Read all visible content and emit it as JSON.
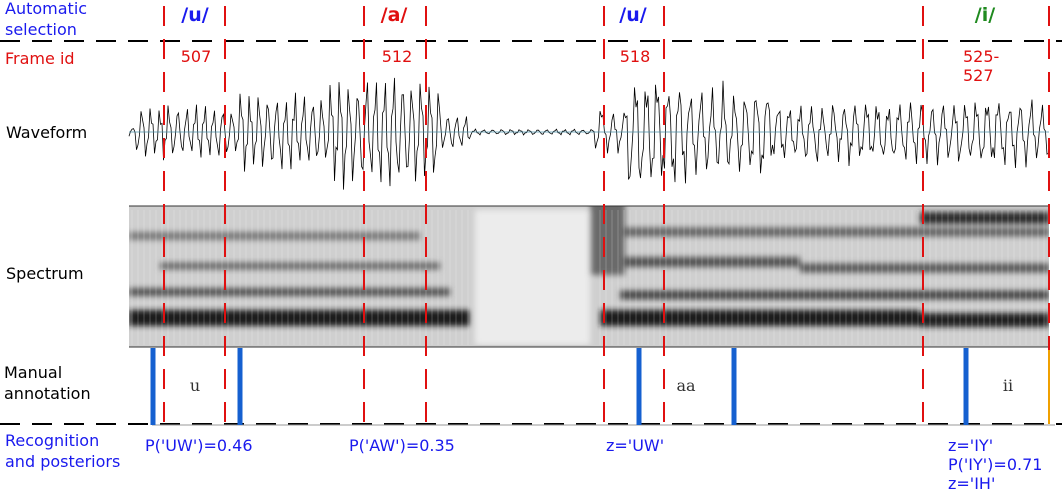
{
  "row_labels": {
    "automatic_selection": "Automatic\nselection",
    "frame_id": "Frame id",
    "waveform": "Waveform",
    "spectrum": "Spectrum",
    "manual_annotation": "Manual\nannotation",
    "recognition": "Recognition\nand posteriors"
  },
  "segments": [
    {
      "vowel": "/u/",
      "vowel_color": "#1a1aee",
      "frame": "507",
      "manual": "u",
      "posterior": "P('UW')=0.46"
    },
    {
      "vowel": "/a/",
      "vowel_color": "#e01010",
      "frame": "512",
      "manual": "",
      "posterior": "P('AW')=0.35"
    },
    {
      "vowel": "/u/",
      "vowel_color": "#1a1aee",
      "frame": "518",
      "manual": "aa",
      "posterior": "z='UW'"
    },
    {
      "vowel": "/i/",
      "vowel_color": "#1f8a1f",
      "frame": "525-527",
      "manual": "ii",
      "posterior": "z='IY'\nP('IY')=0.71\nz='IH'"
    }
  ],
  "colors": {
    "label_blue": "#1a1aee",
    "boundary_red": "#e01010",
    "annotation_bar": "#1560d0",
    "vowel_green": "#1f8a1f"
  }
}
